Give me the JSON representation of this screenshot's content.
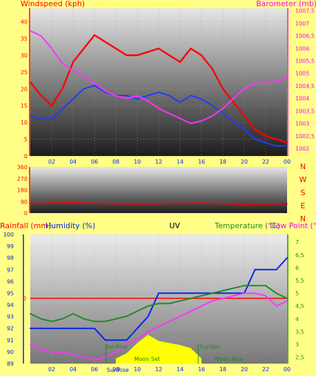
{
  "chart_data": [
    {
      "type": "line",
      "panel": "wind-barometer",
      "title": "",
      "y_label_left": "Windspeed (kph)",
      "y_label_right": "Barometer (mb)",
      "header_faint": "Max wind... (at 16 november 2012)",
      "x_ticks": [
        "02",
        "04",
        "06",
        "08",
        "10",
        "12",
        "14",
        "16",
        "18",
        "20",
        "22",
        "00"
      ],
      "y_left_ticks": [
        "0",
        "5",
        "10",
        "15",
        "20",
        "25",
        "30",
        "35",
        "40"
      ],
      "y_left_range": [
        0,
        44
      ],
      "y_right_ticks": [
        "1002",
        "1002,5",
        "1003",
        "1003,5",
        "1004",
        "1004,5",
        "1005",
        "1005,5",
        "1006",
        "1006,5",
        "1007",
        "1007,5"
      ],
      "y_right_range": [
        1001.7,
        1007.6
      ],
      "colors": {
        "gust": "#ff0000",
        "wind": "#1e3cff",
        "barometer": "#ff33ff"
      },
      "series": [
        {
          "name": "gust",
          "x": [
            0,
            1,
            2,
            3,
            4,
            5,
            6,
            7,
            8,
            9,
            10,
            11,
            12,
            13,
            14,
            15,
            16,
            17,
            18,
            19,
            20,
            21,
            22,
            23,
            24
          ],
          "y": [
            22,
            18,
            15,
            20,
            28,
            32,
            36,
            34,
            32,
            30,
            30,
            31,
            32,
            30,
            28,
            32,
            30,
            26,
            20,
            16,
            12,
            8,
            6,
            5,
            4
          ]
        },
        {
          "name": "wind",
          "x": [
            0,
            1,
            2,
            3,
            4,
            5,
            6,
            7,
            8,
            9,
            10,
            11,
            12,
            13,
            14,
            15,
            16,
            17,
            18,
            19,
            20,
            21,
            22,
            23,
            24
          ],
          "y": [
            12,
            11,
            11,
            14,
            17,
            20,
            21,
            19,
            18,
            18,
            17,
            18,
            19,
            18,
            16,
            18,
            17,
            15,
            13,
            10,
            8,
            5,
            4,
            3,
            3
          ]
        },
        {
          "name": "barometer",
          "x": [
            0,
            1,
            2,
            3,
            4,
            5,
            6,
            7,
            8,
            9,
            10,
            11,
            12,
            13,
            14,
            15,
            16,
            17,
            18,
            19,
            20,
            21,
            22,
            23,
            24
          ],
          "y": [
            1006.7,
            1006.5,
            1006.0,
            1005.4,
            1005.1,
            1004.9,
            1004.6,
            1004.3,
            1004.1,
            1004.0,
            1004.1,
            1003.9,
            1003.6,
            1003.4,
            1003.2,
            1003.0,
            1003.1,
            1003.3,
            1003.6,
            1004.0,
            1004.4,
            1004.6,
            1004.6,
            1004.7,
            1004.8
          ]
        }
      ]
    },
    {
      "type": "line",
      "panel": "wind-direction",
      "y_ticks": [
        "0",
        "90",
        "180",
        "270",
        "360"
      ],
      "y_range": [
        0,
        360
      ],
      "compass": [
        "N",
        "W",
        "S",
        "E",
        "N"
      ],
      "colors": {
        "direction": "#ff0000"
      },
      "series": [
        {
          "name": "direction",
          "x": [
            0,
            2,
            4,
            6,
            8,
            10,
            12,
            14,
            16,
            18,
            20,
            22,
            24
          ],
          "y": [
            75,
            78,
            80,
            76,
            74,
            72,
            74,
            76,
            78,
            74,
            70,
            72,
            74
          ]
        }
      ]
    },
    {
      "type": "line",
      "panel": "rain-humidity-uv-temp",
      "labels": {
        "rainfall": "Rainfall (mm)",
        "humidity": "Humidity (%)",
        "uv": "UV",
        "temperature": "Temperature (°C)",
        "dewpoint": "Dew Point (°C)"
      },
      "rain_zero_label": "0",
      "y_humidity_ticks": [
        "89",
        "90",
        "91",
        "92",
        "93",
        "94",
        "95",
        "96",
        "97",
        "98",
        "99",
        "100"
      ],
      "y_humidity_range": [
        89,
        100
      ],
      "y_temp_ticks": [
        "2,5",
        "3",
        "3,5",
        "4",
        "4,5",
        "5",
        "5,5",
        "6",
        "6,5",
        "7"
      ],
      "y_temp_range": [
        2.25,
        7.3
      ],
      "sun_moon_labels": [
        "SunRise",
        "SunSet",
        "Moon Set",
        "Moon Rise"
      ],
      "colors": {
        "humidity": "#0022ee",
        "temperature": "#1f8a1f",
        "dewpoint": "#ff33ff",
        "uv": "#ffff00",
        "rain": "#ff0000"
      },
      "series": [
        {
          "name": "humidity",
          "x": [
            0,
            1,
            2,
            3,
            4,
            5,
            6,
            7,
            8,
            9,
            10,
            11,
            12,
            13,
            14,
            15,
            16,
            17,
            18,
            19,
            20,
            21,
            22,
            23,
            24
          ],
          "y": [
            92,
            92,
            92,
            92,
            92,
            92,
            92,
            91,
            91,
            91,
            92,
            93,
            95,
            95,
            95,
            95,
            95,
            95,
            95,
            95,
            95,
            97,
            97,
            97,
            98
          ]
        },
        {
          "name": "temperature",
          "x": [
            0,
            1,
            2,
            3,
            4,
            5,
            6,
            7,
            8,
            9,
            10,
            11,
            12,
            13,
            14,
            15,
            16,
            17,
            18,
            19,
            20,
            21,
            22,
            23,
            24
          ],
          "y": [
            4.2,
            4.0,
            3.9,
            4.0,
            4.2,
            4.0,
            3.9,
            3.9,
            4.0,
            4.1,
            4.3,
            4.5,
            4.6,
            4.6,
            4.7,
            4.8,
            4.9,
            5.0,
            5.1,
            5.2,
            5.3,
            5.3,
            5.3,
            5.0,
            4.8
          ]
        },
        {
          "name": "dewpoint",
          "x": [
            0,
            1,
            2,
            3,
            4,
            5,
            6,
            7,
            8,
            9,
            10,
            11,
            12,
            13,
            14,
            15,
            16,
            17,
            18,
            19,
            20,
            21,
            22,
            23,
            24
          ],
          "y": [
            3.0,
            2.8,
            2.7,
            2.7,
            2.6,
            2.5,
            2.4,
            2.5,
            2.7,
            3.0,
            3.2,
            3.5,
            3.7,
            3.9,
            4.1,
            4.3,
            4.5,
            4.7,
            4.8,
            4.9,
            5.0,
            5.0,
            4.9,
            4.5,
            4.7
          ]
        },
        {
          "name": "uv",
          "x": [
            8,
            9,
            10,
            11,
            12,
            13,
            14,
            15,
            16
          ],
          "y": [
            0.5,
            1.0,
            2.0,
            2.8,
            2.2,
            2.0,
            1.8,
            1.5,
            0.5
          ]
        }
      ]
    }
  ]
}
